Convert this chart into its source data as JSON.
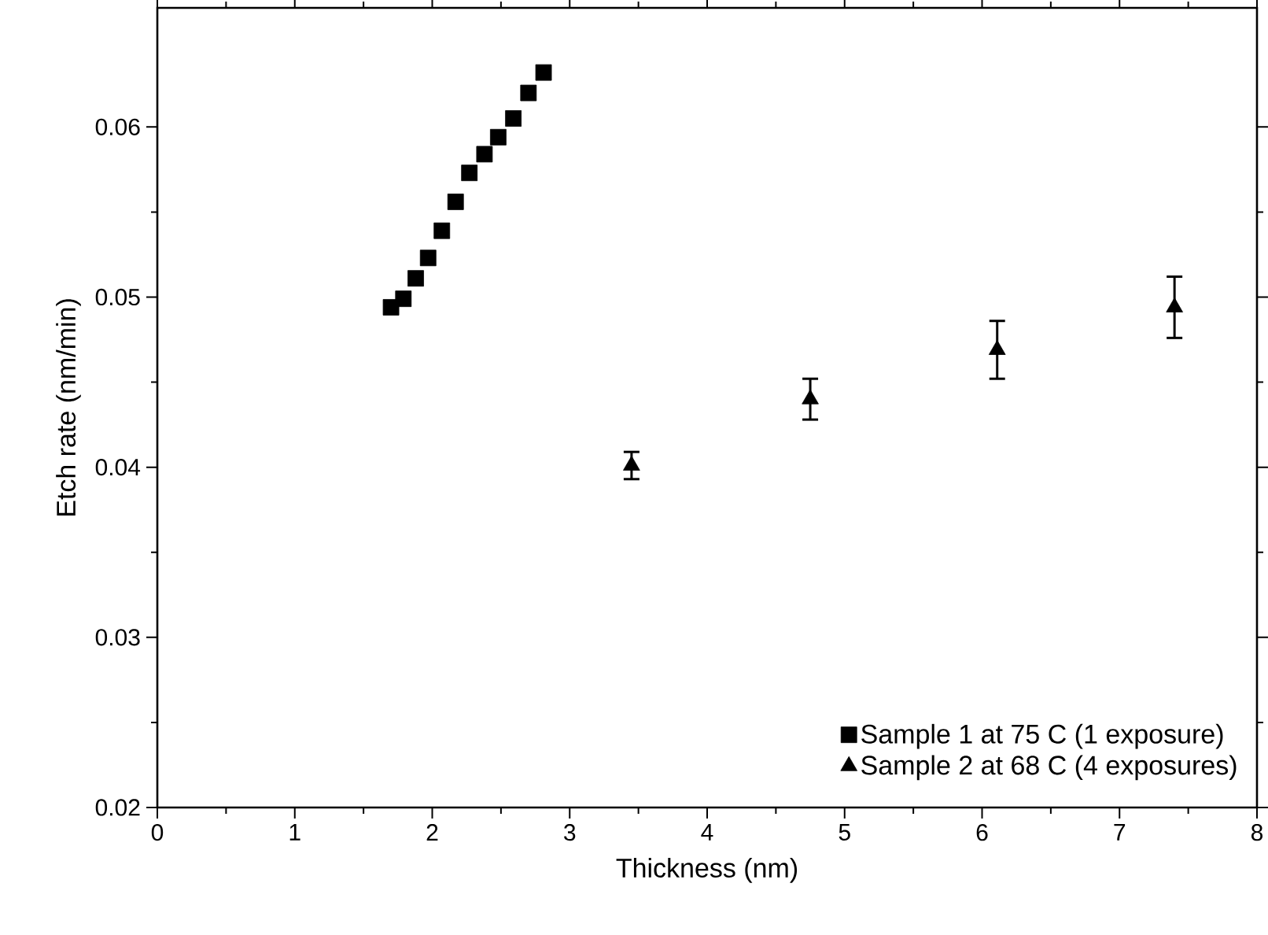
{
  "chart_data": {
    "type": "scatter",
    "xlabel": "Thickness (nm)",
    "ylabel": "Etch rate (nm/min)",
    "xlim": [
      0,
      8
    ],
    "ylim": [
      0.02,
      0.067
    ],
    "xticks": [
      0,
      1,
      2,
      3,
      4,
      5,
      6,
      7,
      8
    ],
    "yticks": [
      0.02,
      0.03,
      0.04,
      0.05,
      0.06
    ],
    "legend": "bottom right",
    "grid": false,
    "series": [
      {
        "name": "Sample 1 at 75 C (1 exposure)",
        "color": "#000000",
        "marker": "square",
        "x": [
          1.7,
          1.79,
          1.88,
          1.97,
          2.07,
          2.17,
          2.27,
          2.38,
          2.48,
          2.59,
          2.7,
          2.81
        ],
        "values": [
          0.0494,
          0.0499,
          0.0511,
          0.0523,
          0.0539,
          0.0556,
          0.0573,
          0.0584,
          0.0594,
          0.0605,
          0.062,
          0.0632
        ]
      },
      {
        "name": "Sample 2 at 68 C (4 exposures)",
        "color": "#000000",
        "marker": "triangle",
        "x": [
          3.45,
          4.75,
          6.11,
          7.4
        ],
        "values": [
          0.0401,
          0.044,
          0.0469,
          0.0494
        ],
        "errors": [
          0.0008,
          0.0012,
          0.0017,
          0.0018
        ]
      }
    ]
  }
}
